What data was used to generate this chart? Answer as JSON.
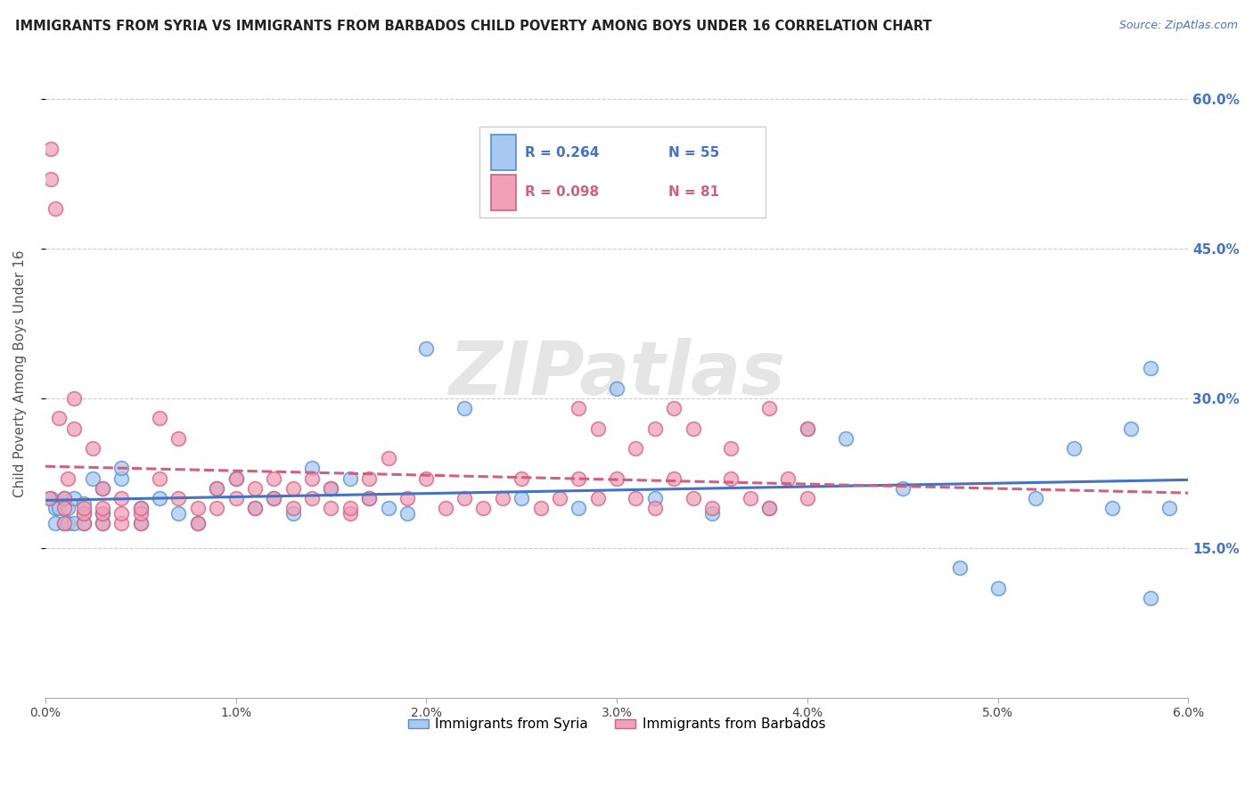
{
  "title": "IMMIGRANTS FROM SYRIA VS IMMIGRANTS FROM BARBADOS CHILD POVERTY AMONG BOYS UNDER 16 CORRELATION CHART",
  "source": "Source: ZipAtlas.com",
  "ylabel": "Child Poverty Among Boys Under 16",
  "legend_labels": [
    "Immigrants from Syria",
    "Immigrants from Barbados"
  ],
  "r_syria": 0.264,
  "n_syria": 55,
  "r_barbados": 0.098,
  "n_barbados": 81,
  "color_syria_fill": "#a8c8f0",
  "color_syria_edge": "#5090d0",
  "color_barbados_fill": "#f0a0b8",
  "color_barbados_edge": "#d06080",
  "color_syria_line": "#4472c4",
  "color_barbados_line": "#d06080",
  "xlim": [
    0.0,
    0.06
  ],
  "ylim": [
    0.0,
    0.65
  ],
  "yticks": [
    0.15,
    0.3,
    0.45,
    0.6
  ],
  "ytick_labels": [
    "15.0%",
    "30.0%",
    "45.0%",
    "60.0%"
  ],
  "xtick_vals": [
    0.0,
    0.01,
    0.02,
    0.03,
    0.04,
    0.05,
    0.06
  ],
  "xtick_labels": [
    "0.0%",
    "1.0%",
    "2.0%",
    "3.0%",
    "4.0%",
    "5.0%",
    "6.0%"
  ],
  "syria_x": [
    0.0003,
    0.0005,
    0.0005,
    0.0007,
    0.001,
    0.001,
    0.0012,
    0.0012,
    0.0015,
    0.0015,
    0.002,
    0.002,
    0.002,
    0.0025,
    0.003,
    0.003,
    0.003,
    0.004,
    0.004,
    0.005,
    0.005,
    0.006,
    0.007,
    0.008,
    0.009,
    0.01,
    0.011,
    0.012,
    0.013,
    0.014,
    0.015,
    0.016,
    0.017,
    0.018,
    0.019,
    0.02,
    0.022,
    0.025,
    0.028,
    0.03,
    0.032,
    0.035,
    0.038,
    0.04,
    0.042,
    0.045,
    0.048,
    0.05,
    0.052,
    0.054,
    0.056,
    0.057,
    0.058,
    0.059,
    0.058
  ],
  "syria_y": [
    0.2,
    0.19,
    0.175,
    0.19,
    0.175,
    0.2,
    0.19,
    0.175,
    0.2,
    0.175,
    0.175,
    0.185,
    0.195,
    0.22,
    0.175,
    0.185,
    0.21,
    0.22,
    0.23,
    0.175,
    0.19,
    0.2,
    0.185,
    0.175,
    0.21,
    0.22,
    0.19,
    0.2,
    0.185,
    0.23,
    0.21,
    0.22,
    0.2,
    0.19,
    0.185,
    0.35,
    0.29,
    0.2,
    0.19,
    0.31,
    0.2,
    0.185,
    0.19,
    0.27,
    0.26,
    0.21,
    0.13,
    0.11,
    0.2,
    0.25,
    0.19,
    0.27,
    0.33,
    0.19,
    0.1
  ],
  "barbados_x": [
    0.0002,
    0.0003,
    0.0003,
    0.0005,
    0.0007,
    0.001,
    0.001,
    0.001,
    0.0012,
    0.0015,
    0.0015,
    0.002,
    0.002,
    0.002,
    0.0025,
    0.003,
    0.003,
    0.003,
    0.003,
    0.004,
    0.004,
    0.004,
    0.005,
    0.005,
    0.005,
    0.006,
    0.006,
    0.007,
    0.007,
    0.008,
    0.008,
    0.009,
    0.009,
    0.01,
    0.01,
    0.011,
    0.011,
    0.012,
    0.012,
    0.013,
    0.013,
    0.014,
    0.014,
    0.015,
    0.015,
    0.016,
    0.016,
    0.017,
    0.017,
    0.018,
    0.019,
    0.02,
    0.021,
    0.022,
    0.023,
    0.024,
    0.025,
    0.026,
    0.027,
    0.028,
    0.029,
    0.03,
    0.031,
    0.032,
    0.033,
    0.034,
    0.035,
    0.036,
    0.037,
    0.038,
    0.039,
    0.04,
    0.028,
    0.029,
    0.031,
    0.032,
    0.033,
    0.034,
    0.036,
    0.038,
    0.04
  ],
  "barbados_y": [
    0.2,
    0.55,
    0.52,
    0.49,
    0.28,
    0.2,
    0.175,
    0.19,
    0.22,
    0.3,
    0.27,
    0.175,
    0.185,
    0.19,
    0.25,
    0.175,
    0.185,
    0.19,
    0.21,
    0.175,
    0.185,
    0.2,
    0.175,
    0.185,
    0.19,
    0.22,
    0.28,
    0.2,
    0.26,
    0.19,
    0.175,
    0.21,
    0.19,
    0.2,
    0.22,
    0.19,
    0.21,
    0.2,
    0.22,
    0.19,
    0.21,
    0.2,
    0.22,
    0.19,
    0.21,
    0.185,
    0.19,
    0.2,
    0.22,
    0.24,
    0.2,
    0.22,
    0.19,
    0.2,
    0.19,
    0.2,
    0.22,
    0.19,
    0.2,
    0.22,
    0.2,
    0.22,
    0.2,
    0.19,
    0.22,
    0.2,
    0.19,
    0.22,
    0.2,
    0.19,
    0.22,
    0.2,
    0.29,
    0.27,
    0.25,
    0.27,
    0.29,
    0.27,
    0.25,
    0.29,
    0.27
  ]
}
